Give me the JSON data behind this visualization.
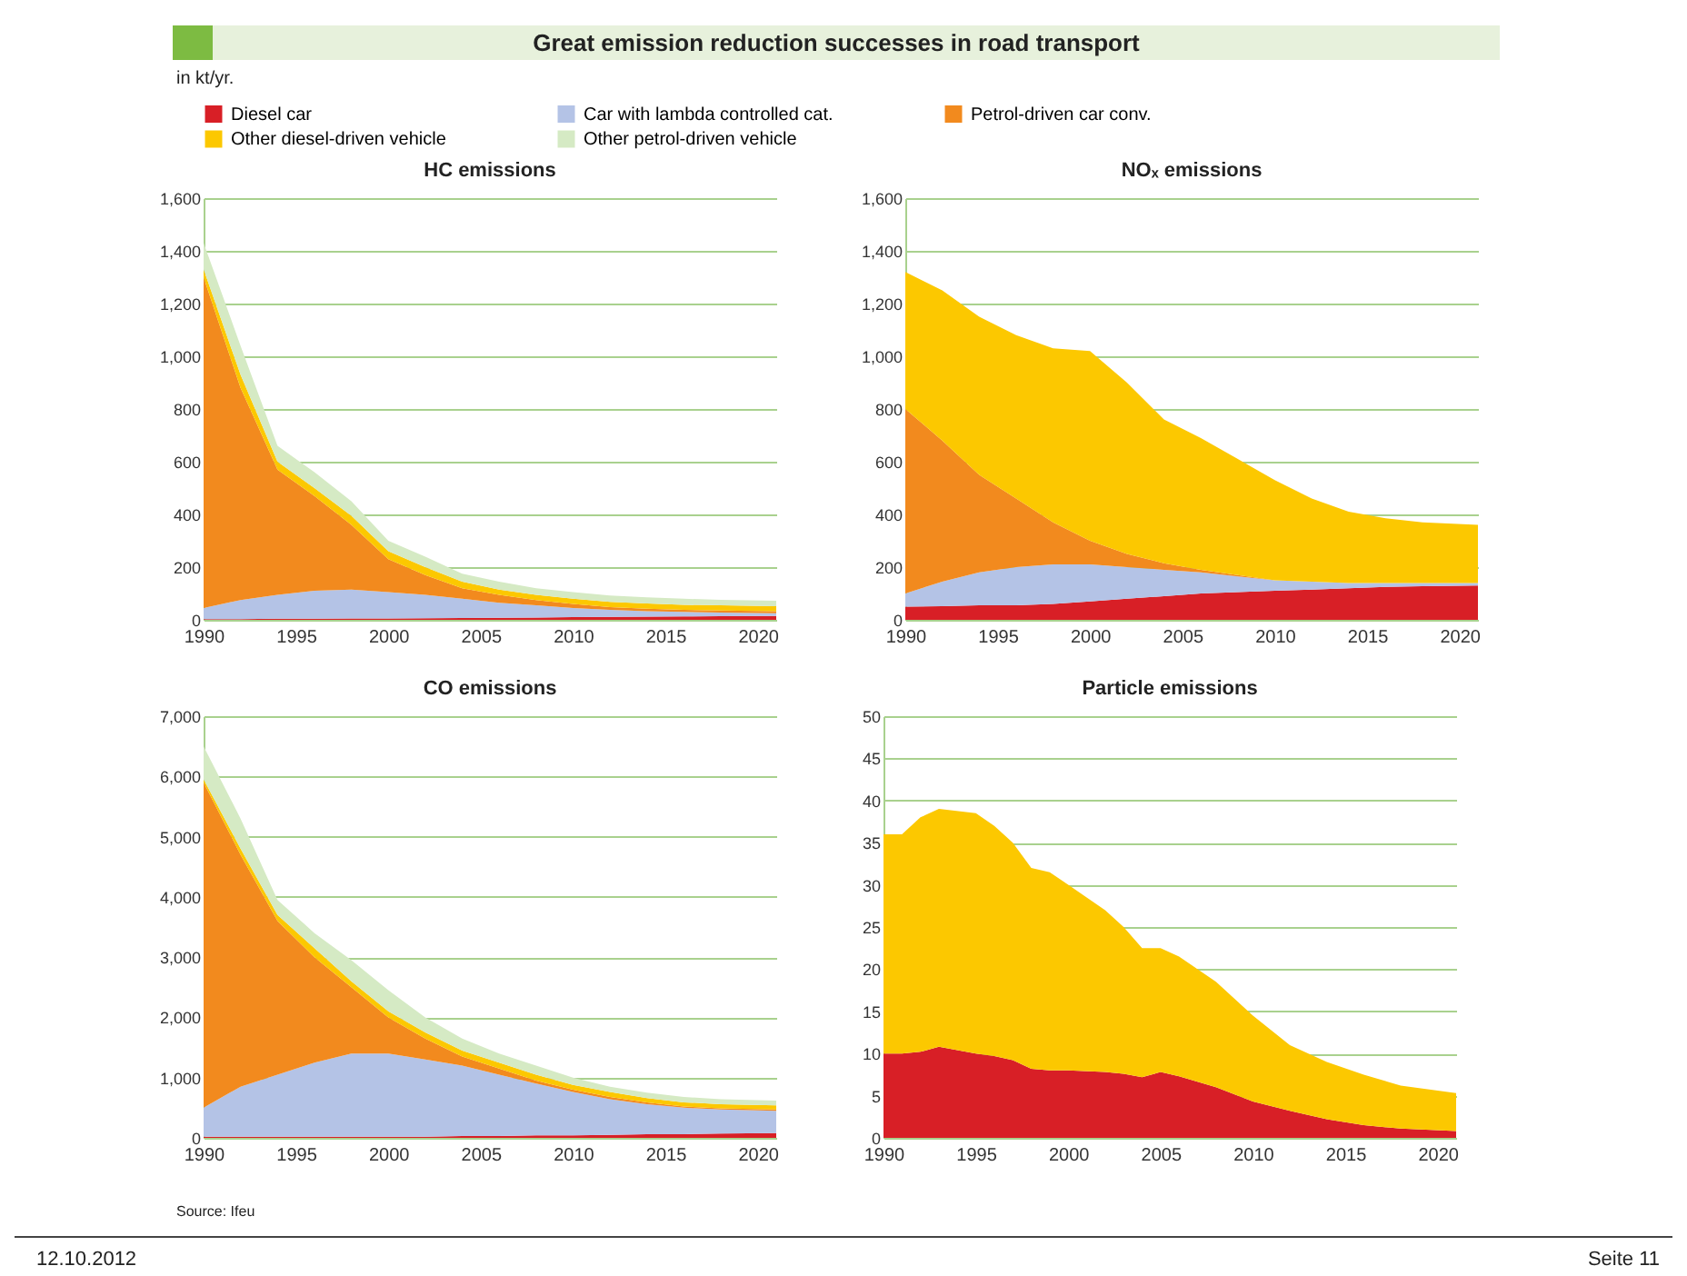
{
  "chart_data": [
    {
      "type": "area",
      "title": "HC emissions",
      "stacked": true,
      "grid": "y",
      "legend": "top",
      "annotations": [
        "Great emission reduction successes in road transport",
        "in kt/yr."
      ],
      "x": [
        1990,
        1992,
        1994,
        1996,
        1998,
        2000,
        2002,
        2004,
        2006,
        2008,
        2010,
        2012,
        2014,
        2016,
        2018,
        2021
      ],
      "xlim": [
        1990,
        2021
      ],
      "xticks": [
        1990,
        1995,
        2000,
        2005,
        2010,
        2015,
        2020
      ],
      "ylim": [
        0,
        1600
      ],
      "yticks": [
        0,
        200,
        400,
        600,
        800,
        {
          "value": 1000,
          "label": "1,000"
        },
        {
          "value": 1200,
          "label": "1,200"
        },
        {
          "value": 1400,
          "label": "1,400"
        },
        {
          "value": 1600,
          "label": "1,600"
        }
      ],
      "series": [
        {
          "name": "Diesel car",
          "color": "#d81f26",
          "values": [
            3,
            3,
            4,
            4,
            5,
            5,
            6,
            7,
            8,
            9,
            10,
            11,
            12,
            13,
            14,
            15
          ]
        },
        {
          "name": "Car with lambda controlled cat.",
          "color": "#b4c3e6",
          "values": [
            42,
            72,
            91,
            106,
            110,
            100,
            89,
            73,
            57,
            46,
            35,
            27,
            21,
            17,
            14,
            10
          ]
        },
        {
          "name": "Petrol-driven car conv.",
          "color": "#f28a1e",
          "values": [
            1255,
            805,
            475,
            360,
            245,
            125,
            75,
            40,
            30,
            20,
            15,
            10,
            9,
            8,
            7,
            8
          ]
        },
        {
          "name": "Other diesel-driven vehicle",
          "color": "#fcc800",
          "values": [
            30,
            50,
            30,
            30,
            35,
            30,
            30,
            25,
            20,
            20,
            20,
            20,
            20,
            19,
            20,
            19
          ]
        },
        {
          "name": "Other petrol-driven vehicle",
          "color": "#d5eac4",
          "values": [
            100,
            110,
            60,
            60,
            55,
            40,
            40,
            30,
            30,
            25,
            25,
            24,
            23,
            23,
            21,
            20
          ]
        }
      ]
    },
    {
      "type": "area",
      "title": "NOₓ emissions",
      "stacked": true,
      "grid": "y",
      "x": [
        1990,
        1992,
        1994,
        1996,
        1998,
        2000,
        2002,
        2004,
        2006,
        2008,
        2010,
        2012,
        2014,
        2016,
        2018,
        2021
      ],
      "xlim": [
        1990,
        2021
      ],
      "xticks": [
        1990,
        1995,
        2000,
        2005,
        2010,
        2015,
        2020
      ],
      "ylim": [
        0,
        1600
      ],
      "yticks": [
        0,
        200,
        400,
        600,
        800,
        {
          "value": 1000,
          "label": "1,000"
        },
        {
          "value": 1200,
          "label": "1,200"
        },
        {
          "value": 1400,
          "label": "1,400"
        },
        {
          "value": 1600,
          "label": "1,600"
        }
      ],
      "series": [
        {
          "color": "#d81f26",
          "values": [
            50,
            52,
            55,
            55,
            60,
            70,
            80,
            90,
            100,
            105,
            110,
            115,
            120,
            125,
            128,
            130
          ]
        },
        {
          "color": "#b4c3e6",
          "values": [
            50,
            93,
            125,
            145,
            150,
            140,
            120,
            100,
            80,
            60,
            40,
            30,
            20,
            15,
            12,
            10
          ]
        },
        {
          "color": "#f28a1e",
          "values": [
            700,
            535,
            370,
            260,
            160,
            90,
            50,
            25,
            10,
            5,
            0,
            0,
            0,
            0,
            0,
            0
          ]
        },
        {
          "color": "#fcc800",
          "values": [
            520,
            570,
            600,
            620,
            660,
            720,
            650,
            545,
            500,
            440,
            380,
            315,
            270,
            245,
            230,
            220
          ]
        }
      ]
    },
    {
      "type": "area",
      "title": "CO emissions",
      "stacked": true,
      "grid": "y",
      "annotations": [
        "Source: Ifeu"
      ],
      "x": [
        1990,
        1992,
        1994,
        1996,
        1998,
        2000,
        2002,
        2004,
        2006,
        2008,
        2010,
        2012,
        2014,
        2016,
        2018,
        2021
      ],
      "xlim": [
        1990,
        2021
      ],
      "xticks": [
        1990,
        1995,
        2000,
        2005,
        2010,
        2015,
        2020
      ],
      "ylim": [
        0,
        7000
      ],
      "yticks": [
        0,
        {
          "value": 1000,
          "label": "1,000"
        },
        {
          "value": 2000,
          "label": "2,000"
        },
        {
          "value": 3000,
          "label": "3,000"
        },
        {
          "value": 4000,
          "label": "4,000"
        },
        {
          "value": 5000,
          "label": "5,000"
        },
        {
          "value": 6000,
          "label": "6,000"
        },
        {
          "value": 7000,
          "label": "7,000"
        }
      ],
      "series": [
        {
          "color": "#d81f26",
          "values": [
            20,
            20,
            20,
            20,
            20,
            20,
            20,
            30,
            30,
            40,
            40,
            50,
            60,
            60,
            70,
            80
          ]
        },
        {
          "color": "#b4c3e6",
          "values": [
            480,
            830,
            1030,
            1230,
            1380,
            1380,
            1280,
            1170,
            1020,
            860,
            720,
            590,
            500,
            440,
            400,
            370
          ]
        },
        {
          "color": "#f28a1e",
          "values": [
            5400,
            3850,
            2550,
            1750,
            1100,
            600,
            350,
            150,
            100,
            50,
            40,
            40,
            30,
            20,
            20,
            20
          ]
        },
        {
          "color": "#fcc800",
          "values": [
            50,
            100,
            100,
            150,
            100,
            100,
            100,
            100,
            100,
            100,
            80,
            80,
            70,
            70,
            70,
            70
          ]
        },
        {
          "color": "#d5eac4",
          "values": [
            550,
            500,
            250,
            250,
            350,
            350,
            250,
            200,
            150,
            150,
            120,
            90,
            90,
            90,
            80,
            80
          ]
        }
      ]
    },
    {
      "type": "area",
      "title": "Particle emissions",
      "stacked": true,
      "grid": "y",
      "annotations": [
        "12.10.2012",
        "Seite 11"
      ],
      "x": [
        1990,
        1991,
        1992,
        1993,
        1995,
        1996,
        1997,
        1998,
        1999,
        2000,
        2002,
        2003,
        2004,
        2005,
        2006,
        2008,
        2010,
        2012,
        2014,
        2016,
        2018,
        2021
      ],
      "xlim": [
        1990,
        2021
      ],
      "xticks": [
        1990,
        1995,
        2000,
        2005,
        2010,
        2015,
        2020
      ],
      "ylim": [
        0,
        50
      ],
      "yticks": [
        0,
        5,
        10,
        15,
        20,
        25,
        30,
        35,
        40,
        45,
        50
      ],
      "series": [
        {
          "color": "#d81f26",
          "values": [
            10,
            10,
            10.2,
            10.8,
            10,
            9.7,
            9.2,
            8.2,
            8,
            8,
            7.8,
            7.6,
            7.2,
            7.8,
            7.3,
            6,
            4.3,
            3.2,
            2.2,
            1.5,
            1.1,
            0.8
          ]
        },
        {
          "color": "#fcc800",
          "values": [
            26,
            26,
            27.8,
            28.2,
            28.5,
            27.3,
            25.8,
            23.8,
            23.5,
            22,
            19.2,
            17.4,
            15.3,
            14.7,
            14.2,
            12.5,
            10.2,
            7.8,
            6.8,
            6,
            5.1,
            4.5
          ]
        }
      ]
    }
  ]
}
